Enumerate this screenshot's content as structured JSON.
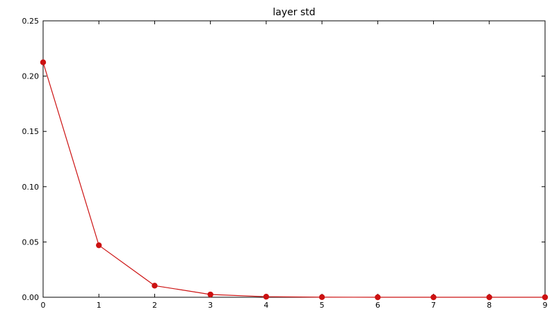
{
  "chart_data": {
    "type": "line",
    "title": "layer std",
    "xlabel": "",
    "ylabel": "",
    "x": [
      0,
      1,
      2,
      3,
      4,
      5,
      6,
      7,
      8,
      9
    ],
    "series": [
      {
        "values": [
          0.2125,
          0.047,
          0.0105,
          0.0025,
          0.0005,
          0.0001,
          0.0,
          0.0,
          0.0,
          0.0
        ]
      }
    ],
    "xlim": [
      0,
      9
    ],
    "ylim": [
      0,
      0.25
    ],
    "x_ticks": [
      "0",
      "1",
      "2",
      "3",
      "4",
      "5",
      "6",
      "7",
      "8",
      "9"
    ],
    "y_ticks": [
      "0.00",
      "0.05",
      "0.10",
      "0.15",
      "0.20",
      "0.25"
    ],
    "grid": false,
    "legend": "none",
    "colors": {
      "series": "#cc1111",
      "axes": "#000000"
    }
  }
}
